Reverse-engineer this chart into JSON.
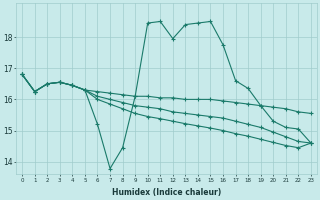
{
  "xlabel": "Humidex (Indice chaleur)",
  "background_color": "#c8eaea",
  "grid_color": "#a0cccc",
  "line_color": "#1a7a6a",
  "ylim": [
    13.6,
    19.1
  ],
  "yticks": [
    14,
    15,
    16,
    17,
    18
  ],
  "xlim": [
    -0.5,
    23.5
  ],
  "xticks": [
    0,
    1,
    2,
    3,
    4,
    5,
    6,
    7,
    8,
    9,
    10,
    11,
    12,
    13,
    14,
    15,
    16,
    17,
    18,
    19,
    20,
    21,
    22,
    23
  ],
  "line1": [
    16.8,
    16.25,
    16.5,
    16.55,
    16.45,
    16.3,
    15.2,
    13.78,
    14.45,
    16.1,
    18.45,
    18.5,
    17.95,
    18.4,
    18.45,
    18.5,
    17.75,
    16.6,
    16.35,
    15.8,
    15.3,
    15.1,
    15.05,
    14.6
  ],
  "line2": [
    16.8,
    16.25,
    16.5,
    16.55,
    16.45,
    16.3,
    16.25,
    16.2,
    16.15,
    16.1,
    16.1,
    16.05,
    16.05,
    16.0,
    16.0,
    16.0,
    15.95,
    15.9,
    15.85,
    15.8,
    15.75,
    15.7,
    15.6,
    15.55
  ],
  "line3": [
    16.8,
    16.25,
    16.5,
    16.55,
    16.45,
    16.3,
    16.1,
    16.0,
    15.9,
    15.8,
    15.75,
    15.7,
    15.6,
    15.55,
    15.5,
    15.45,
    15.4,
    15.3,
    15.2,
    15.1,
    14.95,
    14.8,
    14.65,
    14.6
  ],
  "line4": [
    16.8,
    16.25,
    16.5,
    16.55,
    16.45,
    16.3,
    16.0,
    15.85,
    15.7,
    15.55,
    15.45,
    15.38,
    15.3,
    15.22,
    15.15,
    15.08,
    15.0,
    14.9,
    14.82,
    14.72,
    14.62,
    14.52,
    14.45,
    14.6
  ]
}
